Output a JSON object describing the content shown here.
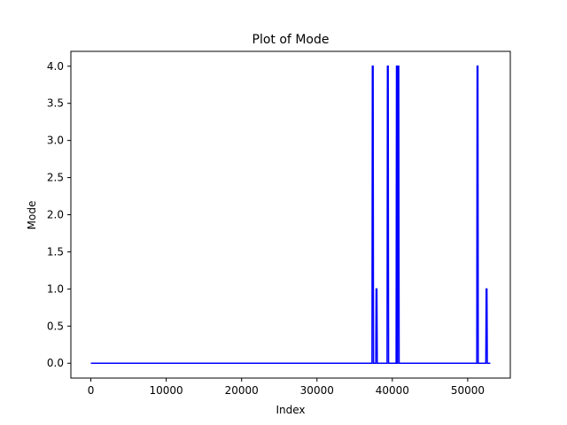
{
  "chart_data": {
    "type": "line",
    "title": "Plot of Mode",
    "xlabel": "Index",
    "ylabel": "Mode",
    "xlim": [
      -2650,
      55650
    ],
    "ylim": [
      -0.2,
      4.2
    ],
    "xticks": [
      0,
      10000,
      20000,
      30000,
      40000,
      50000
    ],
    "xtick_labels": [
      "0",
      "10000",
      "20000",
      "30000",
      "40000",
      "50000"
    ],
    "yticks": [
      0.0,
      0.5,
      1.0,
      1.5,
      2.0,
      2.5,
      3.0,
      3.5,
      4.0
    ],
    "ytick_labels": [
      "0.0",
      "0.5",
      "1.0",
      "1.5",
      "2.0",
      "2.5",
      "3.0",
      "3.5",
      "4.0"
    ],
    "grid": false,
    "legend": "none",
    "series": [
      {
        "color": "#0000ff",
        "x": [
          0,
          37300,
          37350,
          37450,
          37500,
          37800,
          37850,
          37950,
          38000,
          39300,
          39350,
          39450,
          39500,
          40500,
          40550,
          40600,
          40650,
          40700,
          40750,
          40850,
          40900,
          51200,
          51250,
          51350,
          51400,
          52400,
          52450,
          52550,
          52600,
          53000
        ],
        "y": [
          0,
          0,
          4,
          4,
          0,
          0,
          1,
          1,
          0,
          0,
          4,
          4,
          0,
          0,
          4,
          4,
          0,
          0,
          4,
          4,
          0,
          0,
          4,
          4,
          0,
          0,
          1,
          1,
          0,
          0
        ]
      }
    ]
  }
}
